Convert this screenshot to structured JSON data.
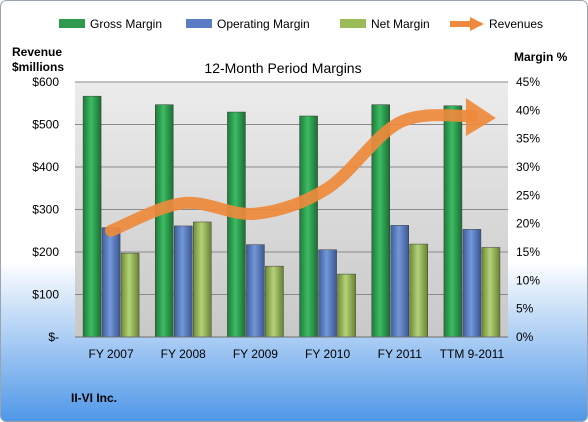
{
  "chart_data": {
    "type": "bar",
    "title": "12-Month Period Margins",
    "left_axis_title_line1": "Revenue",
    "left_axis_title_line2": "$millions",
    "right_axis_title": "Margin %",
    "company_label": "II-VI Inc.",
    "categories": [
      "FY 2007",
      "FY 2008",
      "FY 2009",
      "FY 2010",
      "FY 2011",
      "TTM 9-2011"
    ],
    "left_axis": {
      "min": 0,
      "max": 600,
      "step": 100,
      "tick_labels": [
        "$-",
        "$100",
        "$200",
        "$300",
        "$400",
        "$500",
        "$600"
      ]
    },
    "right_axis": {
      "min": 0,
      "max": 45,
      "step": 5,
      "tick_labels": [
        "0%",
        "5%",
        "10%",
        "15%",
        "20%",
        "25%",
        "30%",
        "35%",
        "40%",
        "45%"
      ]
    },
    "series": [
      {
        "name": "Gross Margin",
        "axis": "right",
        "unit": "%",
        "values": [
          42.5,
          41.0,
          39.7,
          39.0,
          41.0,
          40.8
        ],
        "color": "#2e9a4f"
      },
      {
        "name": "Operating Margin",
        "axis": "right",
        "unit": "%",
        "values": [
          19.3,
          19.6,
          16.3,
          15.4,
          19.7,
          19.0
        ],
        "color": "#5a7cc4"
      },
      {
        "name": "Net Margin",
        "axis": "right",
        "unit": "%",
        "values": [
          14.8,
          20.3,
          12.5,
          11.1,
          16.4,
          15.8
        ],
        "color": "#9bbb59"
      },
      {
        "name": "Revenues",
        "axis": "left",
        "unit": "$millions",
        "type": "line",
        "values": [
          250,
          315,
          290,
          350,
          505,
          520
        ],
        "color": "#ee8a3c"
      }
    ],
    "legend_position": "top",
    "grid": true
  }
}
